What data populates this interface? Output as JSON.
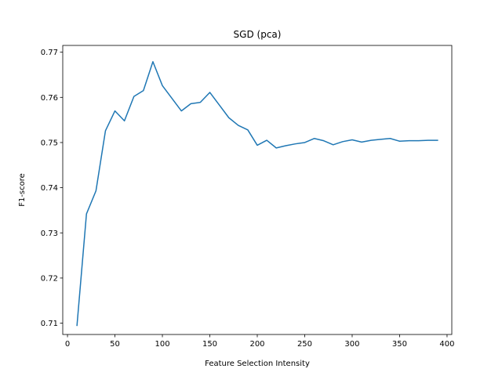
{
  "chart_data": {
    "type": "line",
    "title": "SGD (pca)",
    "xlabel": "Feature Selection Intensity",
    "ylabel": "F1-score",
    "xlim": [
      -5,
      405
    ],
    "ylim": [
      0.7075,
      0.7715
    ],
    "xticks": [
      0,
      50,
      100,
      150,
      200,
      250,
      300,
      350,
      400
    ],
    "yticks": [
      0.71,
      0.72,
      0.73,
      0.74,
      0.75,
      0.76,
      0.77
    ],
    "xtick_labels": [
      "0",
      "50",
      "100",
      "150",
      "200",
      "250",
      "300",
      "350",
      "400"
    ],
    "ytick_labels": [
      "0.71",
      "0.72",
      "0.73",
      "0.74",
      "0.75",
      "0.76",
      "0.77"
    ],
    "grid": false,
    "legend": "none",
    "series": [
      {
        "color": "#1f77b4",
        "x": [
          10,
          20,
          30,
          40,
          50,
          60,
          70,
          80,
          90,
          100,
          110,
          120,
          130,
          140,
          150,
          160,
          170,
          180,
          190,
          200,
          210,
          220,
          230,
          240,
          250,
          260,
          270,
          280,
          290,
          300,
          310,
          320,
          330,
          340,
          350,
          360,
          370,
          380,
          390
        ],
        "y": [
          0.7095,
          0.7342,
          0.7393,
          0.7526,
          0.757,
          0.7548,
          0.7602,
          0.7615,
          0.7679,
          0.7626,
          0.7598,
          0.757,
          0.7586,
          0.7589,
          0.7611,
          0.7583,
          0.7555,
          0.7538,
          0.7528,
          0.7494,
          0.7505,
          0.7488,
          0.7493,
          0.7497,
          0.75,
          0.7509,
          0.7504,
          0.7495,
          0.7502,
          0.7506,
          0.7501,
          0.7505,
          0.7507,
          0.7509,
          0.7503,
          0.7504,
          0.7504,
          0.7505,
          0.7505
        ]
      }
    ]
  }
}
